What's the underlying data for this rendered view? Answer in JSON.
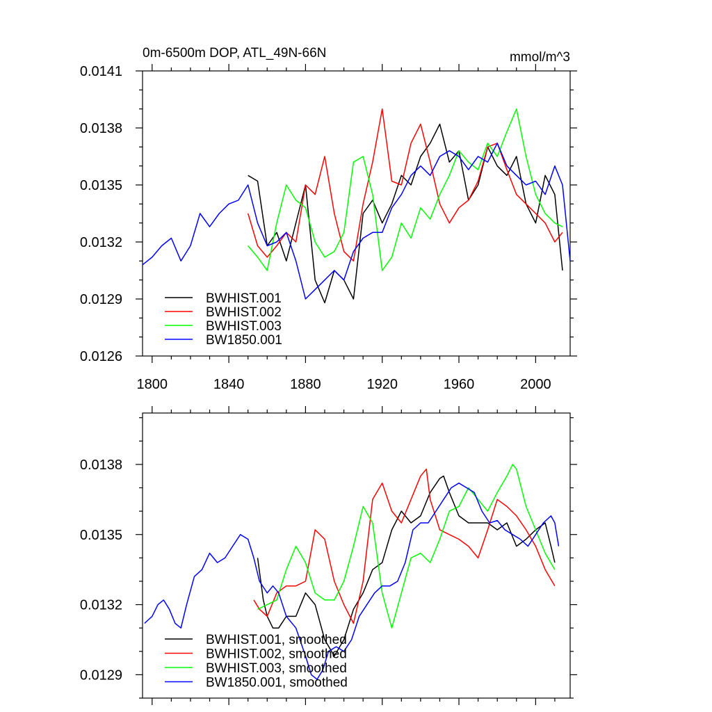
{
  "colors": {
    "BWHIST.001": "#000000",
    "BWHIST.002": "#ff0000",
    "BWHIST.003": "#00ff00",
    "BW1850.001": "#0000ff"
  },
  "chart_data": [
    {
      "type": "line",
      "title": "0m-6500m DOP, ATL_49N-66N",
      "units": "mmol/m^3",
      "xlim": [
        1795,
        2018
      ],
      "ylim": [
        0.0126,
        0.0141
      ],
      "xticks": [
        1800,
        1840,
        1880,
        1920,
        1960,
        2000
      ],
      "yticks": [
        0.0126,
        0.0129,
        0.0132,
        0.0135,
        0.0138,
        0.0141
      ],
      "ytick_labels": [
        "0.0126",
        "0.0129",
        "0.0132",
        "0.0135",
        "0.0138",
        "0.0141"
      ],
      "xtick_labels": [
        "1800",
        "1840",
        "1880",
        "1920",
        "1960",
        "2000"
      ],
      "legend": [
        "BWHIST.001",
        "BWHIST.002",
        "BWHIST.003",
        "BW1850.001"
      ],
      "legend_position": "bottom-left",
      "series": [
        {
          "name": "BWHIST.001",
          "x": [
            1850,
            1855,
            1860,
            1865,
            1870,
            1875,
            1880,
            1885,
            1890,
            1895,
            1900,
            1905,
            1910,
            1915,
            1920,
            1925,
            1930,
            1935,
            1940,
            1945,
            1950,
            1955,
            1960,
            1965,
            1970,
            1975,
            1980,
            1985,
            1990,
            1995,
            2000,
            2005,
            2010,
            2014
          ],
          "y": [
            0.01355,
            0.01352,
            0.01318,
            0.01325,
            0.0131,
            0.0133,
            0.0135,
            0.013,
            0.01288,
            0.01305,
            0.013,
            0.0129,
            0.01335,
            0.01342,
            0.0133,
            0.0134,
            0.01355,
            0.0135,
            0.01365,
            0.01372,
            0.01382,
            0.01362,
            0.01368,
            0.01342,
            0.0135,
            0.0137,
            0.0136,
            0.01355,
            0.01365,
            0.0134,
            0.0133,
            0.01355,
            0.01345,
            0.01305
          ]
        },
        {
          "name": "BWHIST.002",
          "x": [
            1850,
            1855,
            1860,
            1865,
            1870,
            1875,
            1880,
            1885,
            1890,
            1895,
            1900,
            1905,
            1910,
            1915,
            1920,
            1925,
            1930,
            1935,
            1940,
            1945,
            1950,
            1955,
            1960,
            1965,
            1970,
            1975,
            1980,
            1985,
            1990,
            1995,
            2000,
            2005,
            2010,
            2014
          ],
          "y": [
            0.01335,
            0.01318,
            0.01312,
            0.01318,
            0.01325,
            0.0132,
            0.0135,
            0.01345,
            0.01365,
            0.01335,
            0.01315,
            0.0131,
            0.0134,
            0.01362,
            0.0139,
            0.01352,
            0.0135,
            0.01372,
            0.01382,
            0.01362,
            0.0134,
            0.0133,
            0.01338,
            0.01342,
            0.01352,
            0.0137,
            0.01372,
            0.01358,
            0.01345,
            0.0134,
            0.01335,
            0.0133,
            0.0132,
            0.01325
          ]
        },
        {
          "name": "BWHIST.003",
          "x": [
            1850,
            1855,
            1860,
            1865,
            1870,
            1875,
            1880,
            1885,
            1890,
            1895,
            1900,
            1905,
            1910,
            1915,
            1920,
            1925,
            1930,
            1935,
            1940,
            1945,
            1950,
            1955,
            1960,
            1965,
            1970,
            1975,
            1980,
            1985,
            1990,
            1995,
            2000,
            2005,
            2010,
            2014
          ],
          "y": [
            0.01318,
            0.01312,
            0.01305,
            0.0133,
            0.0135,
            0.01342,
            0.01338,
            0.0132,
            0.01312,
            0.01315,
            0.01325,
            0.01362,
            0.01365,
            0.01345,
            0.01305,
            0.01312,
            0.0133,
            0.01322,
            0.01338,
            0.01332,
            0.01345,
            0.01355,
            0.01368,
            0.01362,
            0.01358,
            0.01372,
            0.01365,
            0.01378,
            0.0139,
            0.01365,
            0.01345,
            0.01335,
            0.0133,
            0.01328
          ]
        },
        {
          "name": "BW1850.001",
          "x": [
            1795,
            1800,
            1805,
            1810,
            1815,
            1820,
            1825,
            1830,
            1835,
            1840,
            1845,
            1850,
            1855,
            1860,
            1865,
            1870,
            1875,
            1880,
            1885,
            1890,
            1895,
            1900,
            1905,
            1910,
            1915,
            1920,
            1925,
            1930,
            1935,
            1940,
            1945,
            1950,
            1955,
            1960,
            1965,
            1970,
            1975,
            1980,
            1985,
            1990,
            1995,
            2000,
            2005,
            2010,
            2014,
            2018
          ],
          "y": [
            0.01308,
            0.01312,
            0.01318,
            0.01322,
            0.0131,
            0.01318,
            0.01335,
            0.01328,
            0.01335,
            0.0134,
            0.01342,
            0.0135,
            0.0133,
            0.01318,
            0.0132,
            0.01325,
            0.0131,
            0.0129,
            0.01295,
            0.013,
            0.01305,
            0.013,
            0.01315,
            0.01322,
            0.01325,
            0.01325,
            0.01338,
            0.01345,
            0.01355,
            0.0136,
            0.01355,
            0.01365,
            0.01368,
            0.01365,
            0.01358,
            0.01365,
            0.01362,
            0.01372,
            0.0136,
            0.01355,
            0.0135,
            0.01352,
            0.01345,
            0.0136,
            0.0135,
            0.0131
          ]
        }
      ]
    },
    {
      "type": "line",
      "title": "",
      "xlim": [
        1795,
        2018
      ],
      "ylim": [
        0.0128,
        0.01402
      ],
      "xticks": [
        1800,
        1840,
        1880,
        1920,
        1960,
        2000
      ],
      "yticks": [
        0.0129,
        0.0132,
        0.0135,
        0.0138
      ],
      "ytick_labels": [
        "0.0129",
        "0.0132",
        "0.0135",
        "0.0138"
      ],
      "legend": [
        "BWHIST.001, smoothed",
        "BWHIST.002, smoothed",
        "BWHIST.003, smoothed",
        "BW1850.001, smoothed"
      ],
      "legend_position": "bottom-left",
      "series": [
        {
          "name": "BWHIST.001, smoothed",
          "x": [
            1855,
            1858,
            1860,
            1863,
            1866,
            1870,
            1875,
            1880,
            1885,
            1890,
            1895,
            1900,
            1905,
            1910,
            1915,
            1920,
            1925,
            1930,
            1935,
            1940,
            1945,
            1950,
            1952,
            1955,
            1960,
            1965,
            1970,
            1975,
            1980,
            1985,
            1990,
            1995,
            2000,
            2005,
            2008,
            2010
          ],
          "y": [
            0.0134,
            0.01322,
            0.01315,
            0.0131,
            0.0131,
            0.01315,
            0.01315,
            0.01325,
            0.0132,
            0.01305,
            0.01298,
            0.01305,
            0.01318,
            0.01325,
            0.01335,
            0.01338,
            0.01352,
            0.0136,
            0.01355,
            0.01358,
            0.01368,
            0.01374,
            0.01375,
            0.01368,
            0.01358,
            0.01355,
            0.01355,
            0.01355,
            0.01352,
            0.01355,
            0.01345,
            0.01348,
            0.01352,
            0.01355,
            0.01345,
            0.01338
          ]
        },
        {
          "name": "BWHIST.002, smoothed",
          "x": [
            1853,
            1856,
            1860,
            1865,
            1870,
            1875,
            1880,
            1885,
            1890,
            1895,
            1900,
            1905,
            1910,
            1915,
            1920,
            1925,
            1930,
            1935,
            1940,
            1943,
            1945,
            1950,
            1955,
            1960,
            1965,
            1970,
            1975,
            1980,
            1985,
            1990,
            1995,
            2000,
            2005,
            2010
          ],
          "y": [
            0.01322,
            0.01318,
            0.01315,
            0.01325,
            0.01328,
            0.01328,
            0.0133,
            0.01352,
            0.01348,
            0.0133,
            0.0132,
            0.01312,
            0.0133,
            0.01365,
            0.01372,
            0.0136,
            0.01355,
            0.01365,
            0.01375,
            0.01378,
            0.01365,
            0.01352,
            0.0135,
            0.01348,
            0.01345,
            0.0134,
            0.01352,
            0.01365,
            0.01362,
            0.01358,
            0.01352,
            0.01345,
            0.01335,
            0.01328
          ]
        },
        {
          "name": "BWHIST.003, smoothed",
          "x": [
            1855,
            1860,
            1865,
            1870,
            1875,
            1880,
            1885,
            1890,
            1895,
            1900,
            1905,
            1910,
            1915,
            1920,
            1925,
            1930,
            1935,
            1940,
            1945,
            1950,
            1955,
            1960,
            1965,
            1970,
            1975,
            1980,
            1985,
            1988,
            1990,
            1995,
            2000,
            2005,
            2010
          ],
          "y": [
            0.01318,
            0.0132,
            0.01322,
            0.01335,
            0.01345,
            0.01338,
            0.01325,
            0.01322,
            0.01322,
            0.0133,
            0.01345,
            0.01362,
            0.01355,
            0.01325,
            0.0131,
            0.01325,
            0.0134,
            0.01342,
            0.01338,
            0.01348,
            0.0136,
            0.01362,
            0.0137,
            0.01365,
            0.0136,
            0.01368,
            0.01375,
            0.0138,
            0.01378,
            0.01362,
            0.01352,
            0.01342,
            0.01335
          ]
        },
        {
          "name": "BW1850.001, smoothed",
          "x": [
            1796,
            1800,
            1803,
            1806,
            1809,
            1812,
            1815,
            1818,
            1822,
            1826,
            1830,
            1834,
            1838,
            1842,
            1846,
            1850,
            1853,
            1856,
            1860,
            1863,
            1866,
            1870,
            1875,
            1880,
            1883,
            1886,
            1889,
            1892,
            1896,
            1900,
            1904,
            1908,
            1912,
            1916,
            1920,
            1924,
            1928,
            1932,
            1936,
            1940,
            1944,
            1948,
            1952,
            1956,
            1960,
            1964,
            1968,
            1972,
            1976,
            1980,
            1984,
            1988,
            1992,
            1996,
            2000,
            2004,
            2008,
            2010,
            2012
          ],
          "y": [
            0.01312,
            0.01315,
            0.0132,
            0.01322,
            0.01318,
            0.01312,
            0.0131,
            0.0132,
            0.01332,
            0.01335,
            0.01342,
            0.01338,
            0.0134,
            0.01345,
            0.0135,
            0.01348,
            0.0134,
            0.0133,
            0.01325,
            0.01328,
            0.01325,
            0.01315,
            0.0131,
            0.01298,
            0.0129,
            0.01288,
            0.01292,
            0.013,
            0.01302,
            0.013,
            0.01305,
            0.01315,
            0.0132,
            0.01325,
            0.01328,
            0.01328,
            0.0133,
            0.01338,
            0.01352,
            0.01355,
            0.01355,
            0.0136,
            0.01365,
            0.0137,
            0.01372,
            0.0137,
            0.01368,
            0.0136,
            0.01355,
            0.01356,
            0.01352,
            0.0135,
            0.01348,
            0.01345,
            0.0135,
            0.01355,
            0.01358,
            0.01355,
            0.01345
          ]
        }
      ]
    }
  ]
}
